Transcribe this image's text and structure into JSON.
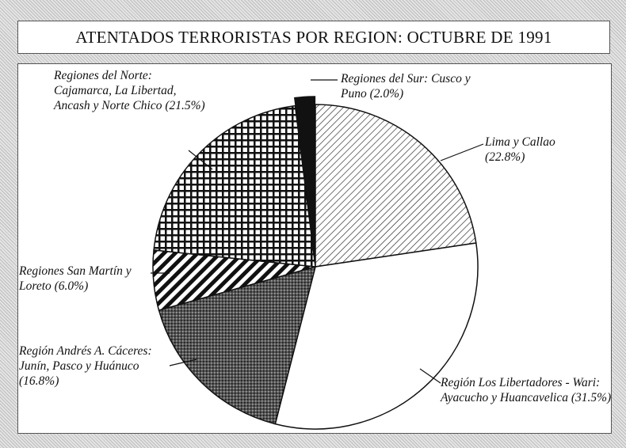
{
  "chart_data": {
    "type": "pie",
    "title": "ATENTADOS TERRORISTAS POR REGION: OCTUBRE DE 1991",
    "categories": [
      "Lima y Callao",
      "Región Los Libertadores - Wari: Ayacucho y Huancavelica",
      "Región Andrés A. Cáceres: Junín, Pasco y Huánuco",
      "Regiones San Martín y Loreto",
      "Regiones del Norte: Cajamarca, La Libertad, Ancash y Norte Chico",
      "Regiones del Sur: Cusco y Puno"
    ],
    "values": [
      22.8,
      31.5,
      16.8,
      6.0,
      21.5,
      2.0
    ],
    "value_labels": [
      "(22.8%)",
      "(31.5%)",
      "(16.8%)",
      "(6.0%)",
      "(21.5%)",
      "(2.0%)"
    ],
    "colors": [
      "#ffffff",
      "#ffffff",
      "#555555",
      "#ffffff",
      "#ffffff",
      "#111111"
    ]
  }
}
